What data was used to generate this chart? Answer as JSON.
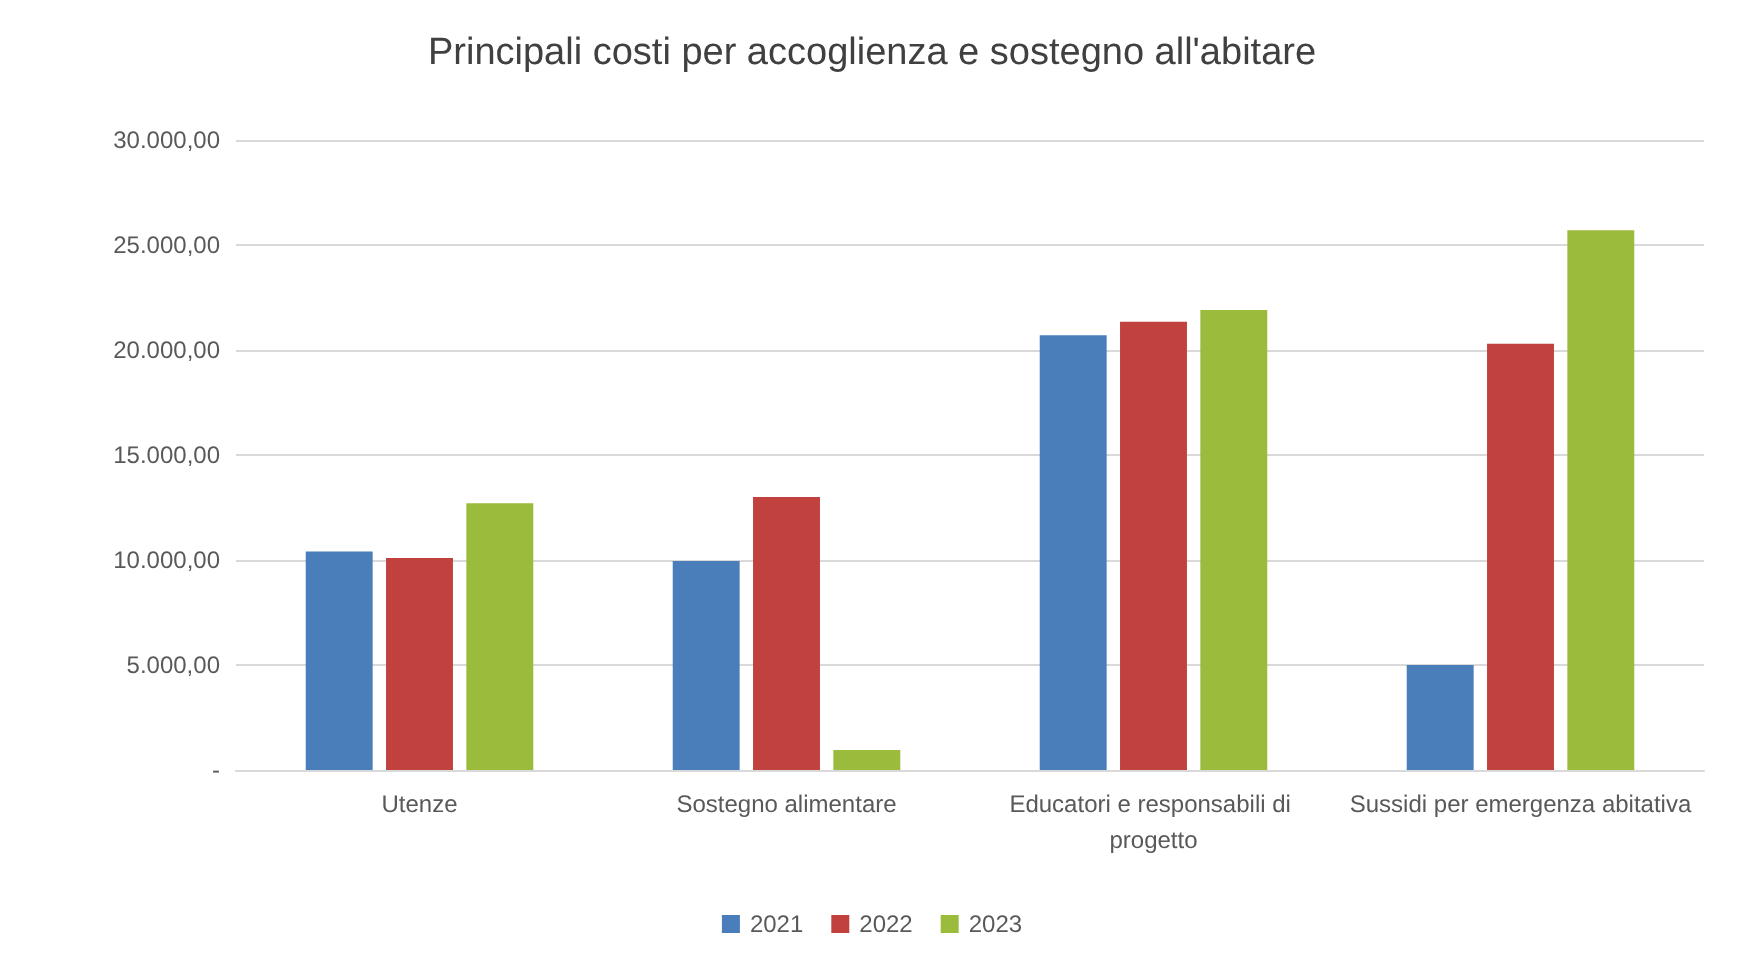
{
  "chart_data": {
    "type": "bar",
    "title": "Principali costi per accoglienza e sostegno all'abitare",
    "categories": [
      "Utenze",
      "Sostegno alimentare",
      "Educatori e responsabili di progetto",
      "Sussidi per emergenza abitativa"
    ],
    "series": [
      {
        "name": "2021",
        "color": "#4a7ebb",
        "values": [
          10400,
          9950,
          20700,
          5000
        ]
      },
      {
        "name": "2022",
        "color": "#c0413e",
        "values": [
          10100,
          13000,
          21350,
          20300
        ]
      },
      {
        "name": "2023",
        "color": "#9bbb3c",
        "values": [
          12700,
          950,
          21900,
          25700
        ]
      }
    ],
    "ylim": [
      0,
      30000
    ],
    "yticks": [
      {
        "value": 0,
        "label": "-"
      },
      {
        "value": 5000,
        "label": "5.000,00"
      },
      {
        "value": 10000,
        "label": "10.000,00"
      },
      {
        "value": 15000,
        "label": "15.000,00"
      },
      {
        "value": 20000,
        "label": "20.000,00"
      },
      {
        "value": 25000,
        "label": "25.000,00"
      },
      {
        "value": 30000,
        "label": "30.000,00"
      }
    ],
    "grid": "y",
    "legend": "bottom"
  }
}
